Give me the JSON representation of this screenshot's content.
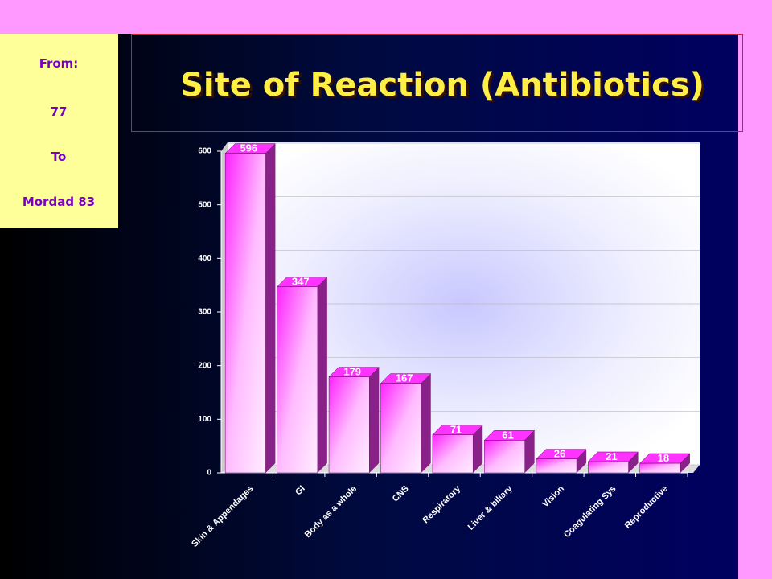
{
  "sidebar": {
    "lines": [
      "From:",
      "77",
      "To",
      "Mordad 83"
    ]
  },
  "chart_data": {
    "type": "bar3d",
    "title": "Site of Reaction (Antibiotics)",
    "categories": [
      "Skin & Appendages",
      "GI",
      "Body as a whole",
      "CNS",
      "Respiratory",
      "Liver & biliary",
      "Vision",
      "Coagulating Sys",
      "Reproductive"
    ],
    "values": [
      596,
      347,
      179,
      167,
      71,
      61,
      26,
      21,
      18
    ],
    "color": "#ff33ff",
    "ylim": [
      0,
      600
    ],
    "yticks": [
      0,
      100,
      200,
      300,
      400,
      500,
      600
    ],
    "grid": true
  }
}
